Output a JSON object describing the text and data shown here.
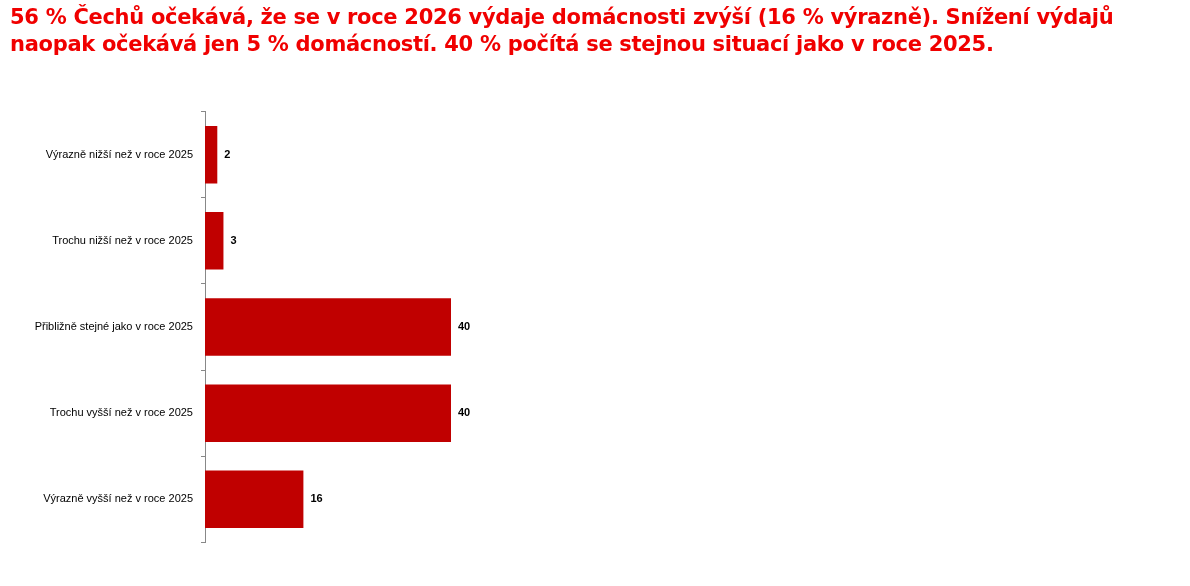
{
  "chart_data": {
    "type": "bar",
    "orientation": "horizontal",
    "title": "56 % Čechů očekává, že se v roce 2026 výdaje domácnosti zvýší  (16 % výrazně). Snížení výdajů naopak očekává jen 5 % domácností. 40 % počítá se stejnou situací jako v roce 2025.",
    "categories": [
      "Výrazně nižší než v roce 2025",
      "Trochu nižší než v roce 2025",
      "Přibližně stejné jako v roce 2025",
      "Trochu vyšší než v roce 2025",
      "Výrazně vyšší než v roce 2025"
    ],
    "values": [
      2,
      3,
      40,
      40,
      16
    ],
    "color": "#c00000",
    "tick_labels": "y",
    "data_labels": true
  }
}
